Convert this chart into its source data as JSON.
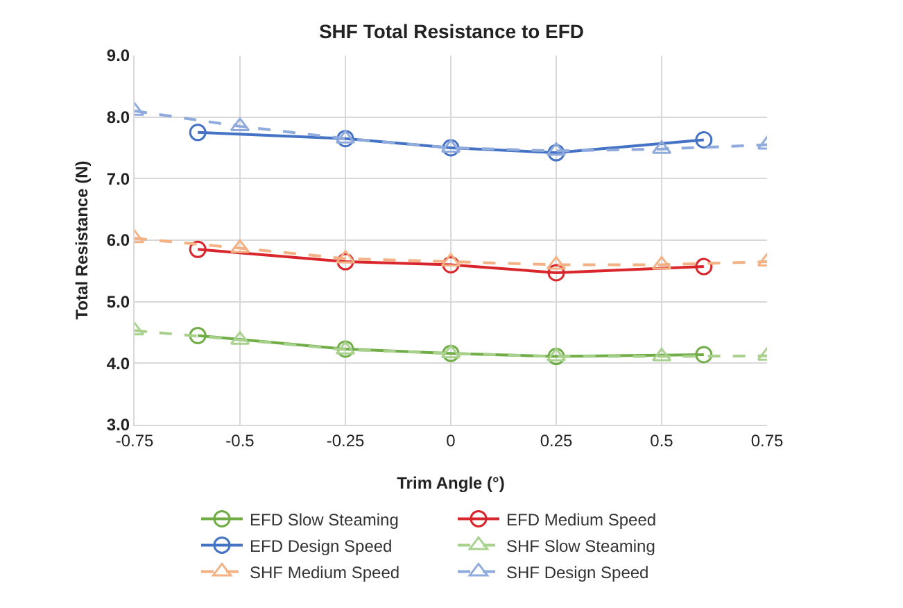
{
  "chart_data": {
    "type": "line",
    "title": "SHF Total Resistance to EFD",
    "xlabel": "Trim Angle (°)",
    "ylabel": "Total Resistance (N)",
    "series": [
      {
        "name": "EFD Slow Steaming",
        "color": "#70ad47",
        "marker": "circle",
        "line_style": "solid",
        "x": [
          -0.6,
          -0.25,
          0,
          0.25,
          0.6
        ],
        "values": [
          4.45,
          4.23,
          4.16,
          4.11,
          4.14
        ]
      },
      {
        "name": "EFD Medium Speed",
        "color": "#d9262c",
        "marker": "circle",
        "line_style": "solid",
        "x": [
          -0.6,
          -0.25,
          0,
          0.25,
          0.6
        ],
        "values": [
          5.85,
          5.65,
          5.6,
          5.47,
          5.57
        ]
      },
      {
        "name": "EFD Design Speed",
        "color": "#4472c4",
        "marker": "circle",
        "line_style": "solid",
        "x": [
          -0.6,
          -0.25,
          0,
          0.25,
          0.6
        ],
        "values": [
          7.75,
          7.65,
          7.5,
          7.42,
          7.63
        ]
      },
      {
        "name": "SHF Slow Steaming",
        "color": "#a9d18e",
        "marker": "triangle",
        "line_style": "dashed",
        "x": [
          -0.75,
          -0.5,
          -0.25,
          0,
          0.25,
          0.5,
          0.75
        ],
        "values": [
          4.53,
          4.38,
          4.22,
          4.16,
          4.11,
          4.11,
          4.12
        ]
      },
      {
        "name": "SHF Medium Speed",
        "color": "#f4b183",
        "marker": "triangle",
        "line_style": "dashed",
        "x": [
          -0.75,
          -0.5,
          -0.25,
          0,
          0.25,
          0.5,
          0.75
        ],
        "values": [
          6.03,
          5.87,
          5.7,
          5.65,
          5.6,
          5.6,
          5.65
        ]
      },
      {
        "name": "SHF Design Speed",
        "color": "#8faadc",
        "marker": "triangle",
        "line_style": "dashed",
        "x": [
          -0.75,
          -0.5,
          -0.25,
          0,
          0.25,
          0.5,
          0.75
        ],
        "values": [
          8.1,
          7.85,
          7.65,
          7.5,
          7.45,
          7.48,
          7.55
        ]
      }
    ],
    "xlim": [
      -0.75,
      0.75
    ],
    "xticks": [
      {
        "value": -0.75,
        "label": "-0.75"
      },
      {
        "value": -0.5,
        "label": "-0.5"
      },
      {
        "value": -0.25,
        "label": "-0.25"
      },
      0,
      0.25,
      0.5,
      0.75
    ],
    "ylim": [
      3,
      9
    ],
    "yticks": [
      {
        "value": 3,
        "label": "3.0"
      },
      {
        "value": 4,
        "label": "4.0"
      },
      {
        "value": 5,
        "label": "5.0"
      },
      {
        "value": 6,
        "label": "6.0"
      },
      {
        "value": 7,
        "label": "7.0"
      },
      {
        "value": 8,
        "label": "8.0"
      },
      {
        "value": 9,
        "label": "9.0"
      }
    ],
    "grid": true,
    "legend": "bottom"
  }
}
